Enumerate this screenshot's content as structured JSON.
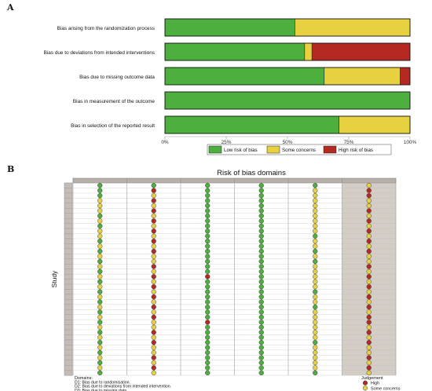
{
  "panels": {
    "a_label": "A",
    "b_label": "B"
  },
  "chart_data": [
    {
      "type": "bar",
      "stacked": "horizontal-100-percent",
      "categories": [
        "Bias arising from the randomization process",
        "Bias due to deviations from intended interventions",
        "Bias due to missing outcome data",
        "Bias in measurement of the outcome",
        "Bias in selection of the reported result"
      ],
      "series": [
        {
          "name": "Low risk of bias",
          "color": "#4caf3e",
          "values": [
            53,
            57,
            65,
            100,
            71
          ]
        },
        {
          "name": "Some concerns",
          "color": "#e7d141",
          "values": [
            47,
            3,
            31,
            0,
            29
          ]
        },
        {
          "name": "High risk of bias",
          "color": "#b42a22",
          "values": [
            0,
            40,
            4,
            0,
            0
          ]
        }
      ],
      "x_ticks": [
        "0%",
        "25%",
        "50%",
        "75%",
        "100%"
      ],
      "xlim": [
        0,
        100
      ],
      "legend_position": "bottom-center"
    },
    {
      "type": "heatmap",
      "title": "Risk of bias domains",
      "y_label": "Study",
      "n_studies": 38,
      "column_count": 6,
      "domains_heading": "Domains:",
      "domain_notes": [
        "D1: Bias due to randomisation.",
        "D2: Bias due to deviations from intended intervention.",
        "D3: Bias due to missing data.",
        "D4: Bias due to outcome measurement.",
        "D5: Bias in selection of reported result."
      ],
      "judgement_heading": "Judgement",
      "judgement_levels": [
        {
          "code": "H",
          "label": "High",
          "color": "#b42a22"
        },
        {
          "code": "S",
          "label": "Some concerns",
          "color": "#e7d141"
        },
        {
          "code": "L",
          "label": "Low",
          "color": "#4caf3e"
        }
      ],
      "grid": [
        "LLLLLS",
        "LHLLSH",
        "LSLLSH",
        "SHLLSS",
        "SSLLSS",
        "SHLLSH",
        "LSLLSS",
        "SHLLSH",
        "LSLLSS",
        "SHLLSH",
        "SSLLLS",
        "LHLLSH",
        "SSLLSS",
        "LHLLLH",
        "SSLLSS",
        "LSLLLS",
        "SHLLSH",
        "LSLLSS",
        "SHHLSH",
        "LSLLSS",
        "SHLLSH",
        "LSLLLS",
        "SHLLSH",
        "LSLLSS",
        "SHLLLH",
        "LSLLSS",
        "SHLLSH",
        "LSHLSH",
        "SSLLSS",
        "LHLLSH",
        "SSLLSS",
        "LHLLLH",
        "SSLLSS",
        "LSLLSS",
        "SHLLSH",
        "LSLLSS",
        "SHLLSH",
        "LSLLLS"
      ]
    }
  ]
}
